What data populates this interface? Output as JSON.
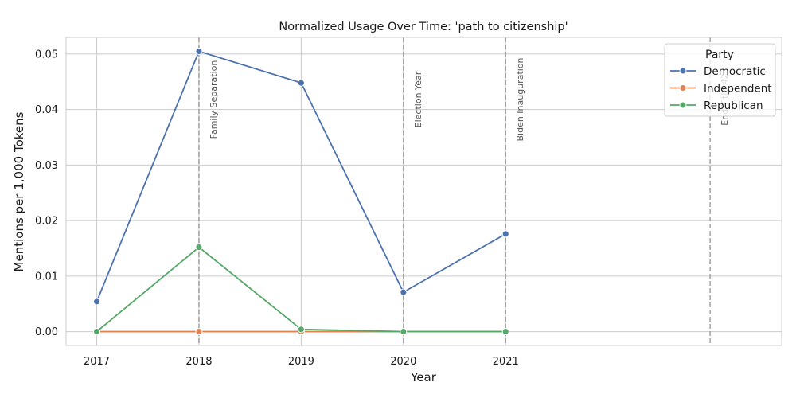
{
  "chart_data": {
    "type": "line",
    "title": "Normalized Usage Over Time: 'path to citizenship'",
    "xlabel": "Year",
    "ylabel": "Mentions per 1,000 Tokens",
    "x_ticks": [
      "2017",
      "2018",
      "2019",
      "2020",
      "2021"
    ],
    "xlim": [
      2016.7,
      2023.7
    ],
    "y_ticks": [
      "0.00",
      "0.01",
      "0.02",
      "0.03",
      "0.04",
      "0.05"
    ],
    "ylim": [
      -0.0025,
      0.053
    ],
    "grid": true,
    "legend": {
      "title": "Party",
      "placement": "top-right"
    },
    "series": [
      {
        "name": "Democratic",
        "color": "#4c72b0",
        "x": [
          2017,
          2018,
          2019,
          2020,
          2021
        ],
        "values": [
          0.0054,
          0.0505,
          0.0448,
          0.0071,
          0.0176
        ]
      },
      {
        "name": "Independent",
        "color": "#dd8452",
        "x": [
          2017,
          2018,
          2019,
          2020,
          2021
        ],
        "values": [
          0.0,
          0.0,
          0.0,
          0.0,
          0.0
        ]
      },
      {
        "name": "Republican",
        "color": "#55a868",
        "x": [
          2017,
          2018,
          2019,
          2020,
          2021
        ],
        "values": [
          0.0,
          0.0152,
          0.0004,
          0.0,
          0.0
        ]
      }
    ],
    "annotations": [
      {
        "x": 2018,
        "label": "Family Separation"
      },
      {
        "x": 2020,
        "label": "Election Year"
      },
      {
        "x": 2021,
        "label": "Biden Inauguration"
      },
      {
        "x": 2023,
        "label": "End Title 42"
      }
    ]
  }
}
